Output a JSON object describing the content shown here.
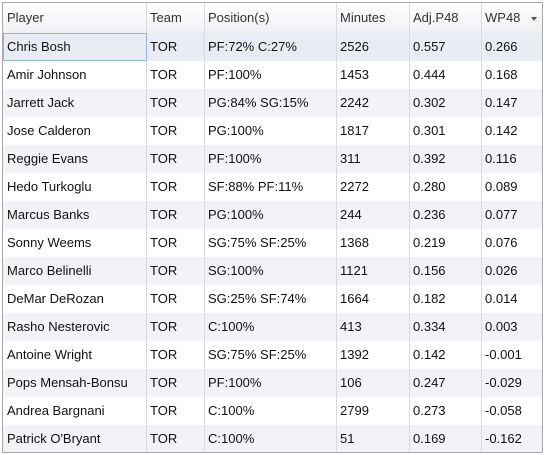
{
  "header": {
    "columns": [
      "Player",
      "Team",
      "Position(s)",
      "Minutes",
      "Adj.P48",
      "WP48"
    ]
  },
  "table": {
    "rows": [
      [
        "Chris Bosh",
        "TOR",
        "PF:72% C:27%",
        "2526",
        "0.557",
        "0.266"
      ],
      [
        "Amir Johnson",
        "TOR",
        "PF:100%",
        "1453",
        "0.444",
        "0.168"
      ],
      [
        "Jarrett Jack",
        "TOR",
        "PG:84% SG:15%",
        "2242",
        "0.302",
        "0.147"
      ],
      [
        "Jose Calderon",
        "TOR",
        "PG:100%",
        "1817",
        "0.301",
        "0.142"
      ],
      [
        "Reggie Evans",
        "TOR",
        "PF:100%",
        "311",
        "0.392",
        "0.116"
      ],
      [
        "Hedo Turkoglu",
        "TOR",
        "SF:88% PF:11%",
        "2272",
        "0.280",
        "0.089"
      ],
      [
        "Marcus Banks",
        "TOR",
        "PG:100%",
        "244",
        "0.236",
        "0.077"
      ],
      [
        "Sonny Weems",
        "TOR",
        "SG:75% SF:25%",
        "1368",
        "0.219",
        "0.076"
      ],
      [
        "Marco Belinelli",
        "TOR",
        "SG:100%",
        "1121",
        "0.156",
        "0.026"
      ],
      [
        "DeMar DeRozan",
        "TOR",
        "SG:25% SF:74%",
        "1664",
        "0.182",
        "0.014"
      ],
      [
        "Rasho Nesterovic",
        "TOR",
        "C:100%",
        "413",
        "0.334",
        "0.003"
      ],
      [
        "Antoine Wright",
        "TOR",
        "SG:75% SF:25%",
        "1392",
        "0.142",
        "-0.001"
      ],
      [
        "Pops Mensah-Bonsu",
        "TOR",
        "PF:100%",
        "106",
        "0.247",
        "-0.029"
      ],
      [
        "Andrea Bargnani",
        "TOR",
        "C:100%",
        "2799",
        "0.273",
        "-0.058"
      ],
      [
        "Patrick O'Bryant",
        "TOR",
        "C:100%",
        "51",
        "0.169",
        "-0.162"
      ]
    ]
  }
}
